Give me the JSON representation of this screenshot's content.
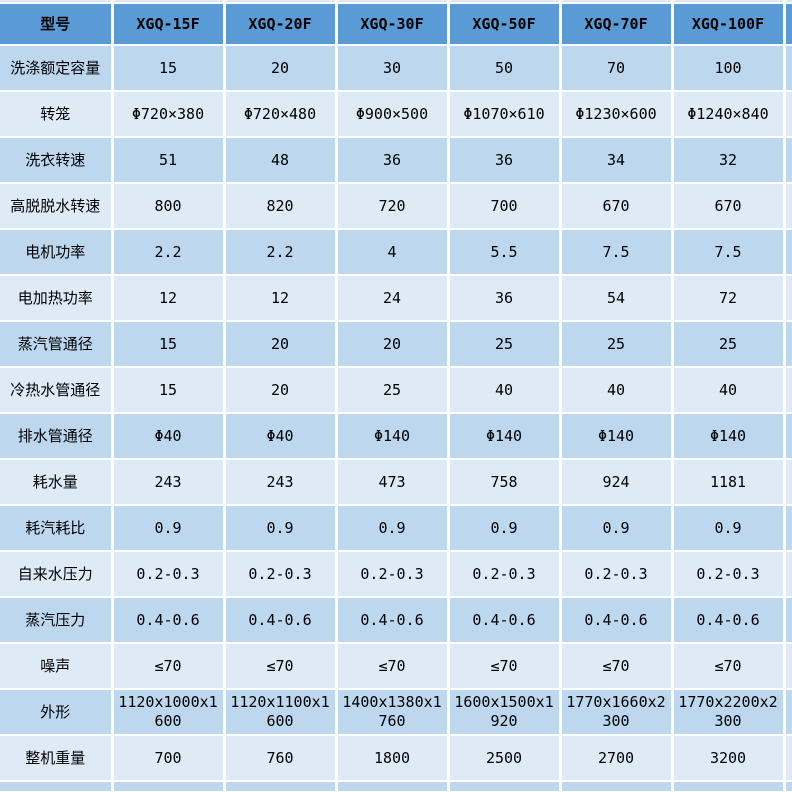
{
  "colors": {
    "header_bg": "#5b9bd5",
    "band_medium": "#bdd7ee",
    "band_light": "#deebf7",
    "grid_border": "#ffffff",
    "header_model_text": "#ffffff",
    "header_label_text": "#000000",
    "body_text": "#000000"
  },
  "chart_data": {
    "type": "table",
    "layout": {
      "banded_rows": true,
      "equal_columns": 7,
      "partial_row_top": true,
      "partial_row_bottom": true,
      "partial_column_right": true
    },
    "header": {
      "label": "型号",
      "models": [
        "XGQ-15F",
        "XGQ-20F",
        "XGQ-30F",
        "XGQ-50F",
        "XGQ-70F",
        "XGQ-100F"
      ]
    },
    "rows": [
      {
        "label": "洗涤额定容量",
        "values": [
          "15",
          "20",
          "30",
          "50",
          "70",
          "100"
        ]
      },
      {
        "label": "转笼",
        "values": [
          "Φ720×380",
          "Φ720×480",
          "Φ900×500",
          "Φ1070×610",
          "Φ1230×600",
          "Φ1240×840"
        ]
      },
      {
        "label": "洗衣转速",
        "values": [
          "51",
          "48",
          "36",
          "36",
          "34",
          "32"
        ]
      },
      {
        "label": "高脱脱水转速",
        "values": [
          "800",
          "820",
          "720",
          "700",
          "670",
          "670"
        ]
      },
      {
        "label": "电机功率",
        "values": [
          "2.2",
          "2.2",
          "4",
          "5.5",
          "7.5",
          "7.5"
        ]
      },
      {
        "label": "电加热功率",
        "values": [
          "12",
          "12",
          "24",
          "36",
          "54",
          "72"
        ]
      },
      {
        "label": "蒸汽管通径",
        "values": [
          "15",
          "20",
          "20",
          "25",
          "25",
          "25"
        ]
      },
      {
        "label": "冷热水管通径",
        "values": [
          "15",
          "20",
          "25",
          "40",
          "40",
          "40"
        ]
      },
      {
        "label": "排水管通径",
        "values": [
          "Φ40",
          "Φ40",
          "Φ140",
          "Φ140",
          "Φ140",
          "Φ140"
        ]
      },
      {
        "label": "耗水量",
        "values": [
          "243",
          "243",
          "473",
          "758",
          "924",
          "1181"
        ]
      },
      {
        "label": "耗汽耗比",
        "values": [
          "0.9",
          "0.9",
          "0.9",
          "0.9",
          "0.9",
          "0.9"
        ]
      },
      {
        "label": "自来水压力",
        "values": [
          "0.2-0.3",
          "0.2-0.3",
          "0.2-0.3",
          "0.2-0.3",
          "0.2-0.3",
          "0.2-0.3"
        ]
      },
      {
        "label": "蒸汽压力",
        "values": [
          "0.4-0.6",
          "0.4-0.6",
          "0.4-0.6",
          "0.4-0.6",
          "0.4-0.6",
          "0.4-0.6"
        ]
      },
      {
        "label": "噪声",
        "values": [
          "≤70",
          "≤70",
          "≤70",
          "≤70",
          "≤70",
          "≤70"
        ]
      },
      {
        "label": "外形",
        "values": [
          "1120x1000x1600",
          "1120x1100x1600",
          "1400x1380x1760",
          "1600x1500x1920",
          "1770x1660x2300",
          "1770x2200x2300"
        ],
        "wrap": true
      },
      {
        "label": "整机重量",
        "values": [
          "700",
          "760",
          "1800",
          "2500",
          "2700",
          "3200"
        ]
      }
    ]
  }
}
